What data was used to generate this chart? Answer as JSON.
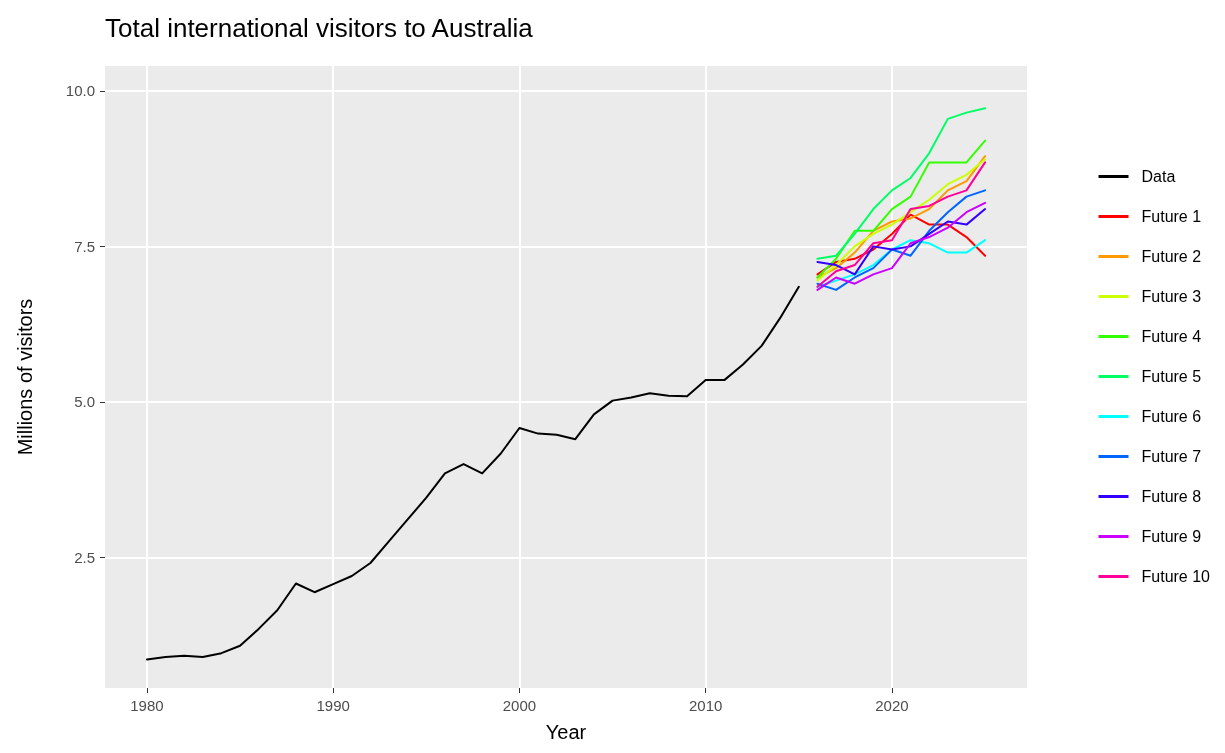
{
  "chart_data": {
    "type": "line",
    "title": "Total international visitors to Australia",
    "xlabel": "Year",
    "ylabel": "Millions of visitors",
    "xlim": [
      1977.75,
      2027.25
    ],
    "xticks": [
      1980,
      1990,
      2000,
      2010,
      2020
    ],
    "ylim": [
      0.4,
      10.4
    ],
    "yticks": [
      2.5,
      {
        "value": 5,
        "label": "5.0"
      },
      7.5,
      {
        "value": 10,
        "label": "10.0"
      }
    ],
    "grid": true,
    "legend": "right",
    "marker": "none",
    "line_style": "solid",
    "series": [
      {
        "name": "Data",
        "color": "#000000",
        "x": [
          1980,
          1981,
          1982,
          1983,
          1984,
          1985,
          1986,
          1987,
          1988,
          1989,
          1990,
          1991,
          1992,
          1993,
          1994,
          1995,
          1996,
          1997,
          1998,
          1999,
          2000,
          2001,
          2002,
          2003,
          2004,
          2005,
          2006,
          2007,
          2008,
          2009,
          2010,
          2011,
          2012,
          2013,
          2014,
          2015
        ],
        "values": [
          0.86,
          0.9,
          0.92,
          0.9,
          0.96,
          1.08,
          1.35,
          1.65,
          2.08,
          1.94,
          2.07,
          2.2,
          2.41,
          2.76,
          3.11,
          3.46,
          3.85,
          4.0,
          3.85,
          4.17,
          4.58,
          4.49,
          4.47,
          4.4,
          4.8,
          5.02,
          5.07,
          5.14,
          5.1,
          5.09,
          5.35,
          5.35,
          5.6,
          5.9,
          6.35,
          6.85
        ]
      },
      {
        "name": "Future 1",
        "color": "#ff0000",
        "x": [
          2016,
          2017,
          2018,
          2019,
          2020,
          2021,
          2022,
          2023,
          2024,
          2025
        ],
        "values": [
          7.05,
          7.25,
          7.3,
          7.45,
          7.7,
          8.01,
          7.85,
          7.85,
          7.65,
          7.35
        ]
      },
      {
        "name": "Future 2",
        "color": "#ff9900",
        "x": [
          2016,
          2017,
          2018,
          2019,
          2020,
          2021,
          2022,
          2023,
          2024,
          2025
        ],
        "values": [
          7.0,
          7.15,
          7.4,
          7.75,
          7.9,
          7.95,
          8.1,
          8.4,
          8.55,
          8.95
        ]
      },
      {
        "name": "Future 3",
        "color": "#ccff00",
        "x": [
          2016,
          2017,
          2018,
          2019,
          2020,
          2021,
          2022,
          2023,
          2024,
          2025
        ],
        "values": [
          6.95,
          7.2,
          7.5,
          7.7,
          7.85,
          8.05,
          8.25,
          8.5,
          8.65,
          8.9
        ]
      },
      {
        "name": "Future 4",
        "color": "#33ff00",
        "x": [
          2016,
          2017,
          2018,
          2019,
          2020,
          2021,
          2022,
          2023,
          2024,
          2025
        ],
        "values": [
          7.0,
          7.3,
          7.75,
          7.75,
          8.1,
          8.3,
          8.85,
          8.85,
          8.85,
          9.2
        ]
      },
      {
        "name": "Future 5",
        "color": "#00ff66",
        "x": [
          2016,
          2017,
          2018,
          2019,
          2020,
          2021,
          2022,
          2023,
          2024,
          2025
        ],
        "values": [
          7.3,
          7.35,
          7.7,
          8.1,
          8.4,
          8.6,
          9.0,
          9.55,
          9.65,
          9.72
        ]
      },
      {
        "name": "Future 6",
        "color": "#00ffff",
        "x": [
          2016,
          2017,
          2018,
          2019,
          2020,
          2021,
          2022,
          2023,
          2024,
          2025
        ],
        "values": [
          6.85,
          6.95,
          7.05,
          7.2,
          7.45,
          7.6,
          7.55,
          7.4,
          7.4,
          7.6
        ]
      },
      {
        "name": "Future 7",
        "color": "#0066ff",
        "x": [
          2016,
          2017,
          2018,
          2019,
          2020,
          2021,
          2022,
          2023,
          2024,
          2025
        ],
        "values": [
          6.9,
          6.8,
          7.0,
          7.15,
          7.45,
          7.35,
          7.75,
          8.05,
          8.3,
          8.4
        ]
      },
      {
        "name": "Future 8",
        "color": "#3300ff",
        "x": [
          2016,
          2017,
          2018,
          2019,
          2020,
          2021,
          2022,
          2023,
          2024,
          2025
        ],
        "values": [
          7.25,
          7.2,
          7.05,
          7.5,
          7.45,
          7.5,
          7.7,
          7.9,
          7.85,
          8.1
        ]
      },
      {
        "name": "Future 9",
        "color": "#cc00ff",
        "x": [
          2016,
          2017,
          2018,
          2019,
          2020,
          2021,
          2022,
          2023,
          2024,
          2025
        ],
        "values": [
          6.8,
          7.0,
          6.9,
          7.05,
          7.15,
          7.55,
          7.65,
          7.8,
          8.05,
          8.2
        ]
      },
      {
        "name": "Future 10",
        "color": "#ff0099",
        "x": [
          2016,
          2017,
          2018,
          2019,
          2020,
          2021,
          2022,
          2023,
          2024,
          2025
        ],
        "values": [
          6.85,
          7.1,
          7.2,
          7.55,
          7.6,
          8.1,
          8.15,
          8.3,
          8.4,
          8.85
        ]
      }
    ]
  }
}
